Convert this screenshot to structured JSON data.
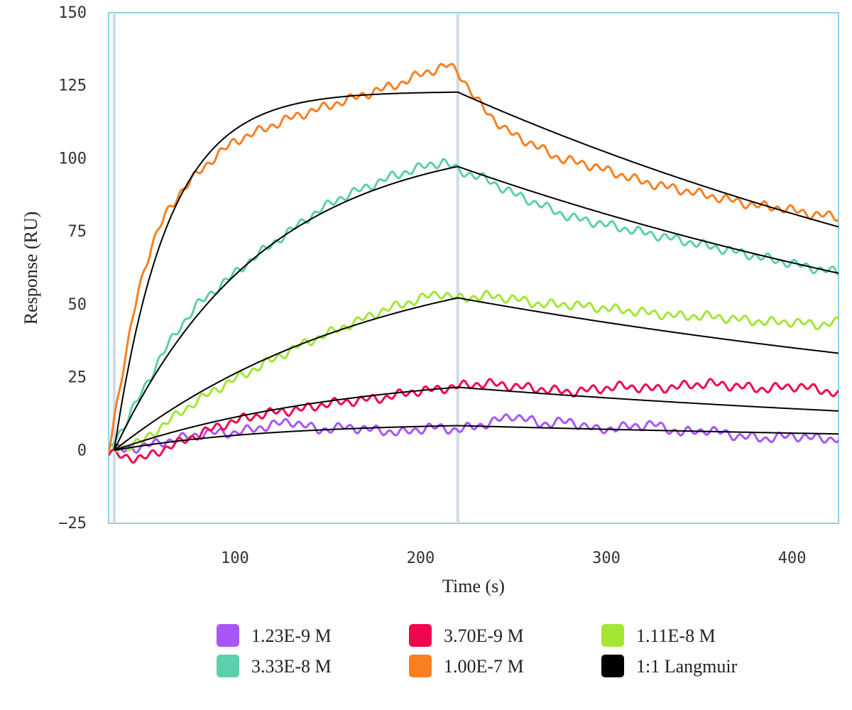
{
  "chart_data": {
    "type": "line",
    "xlabel": "Time (s)",
    "ylabel": "Response (RU)",
    "xlim": [
      32,
      425
    ],
    "ylim": [
      -25,
      150
    ],
    "x_ticks": [
      100,
      200,
      300,
      400
    ],
    "y_ticks": [
      150,
      125,
      100,
      75,
      50,
      25,
      0,
      -25
    ],
    "vertical_markers": [
      35,
      220
    ],
    "legend_position": "bottom",
    "series": [
      {
        "name": "1.23E-9 M",
        "color": "#a855f7",
        "x": [
          32,
          40,
          55,
          70,
          85,
          100,
          115,
          130,
          145,
          160,
          175,
          190,
          205,
          220,
          235,
          250,
          265,
          280,
          295,
          310,
          325,
          340,
          355,
          370,
          385,
          400,
          415,
          425
        ],
        "y": [
          1,
          0,
          2,
          4,
          6,
          6,
          8,
          10,
          7,
          8,
          7,
          6,
          8,
          7,
          9,
          12,
          9,
          10,
          7,
          8,
          9,
          6,
          7,
          5,
          4,
          5,
          4,
          4
        ]
      },
      {
        "name": "3.70E-9 M",
        "color": "#f0064e",
        "x": [
          32,
          40,
          50,
          60,
          75,
          90,
          105,
          120,
          135,
          150,
          165,
          180,
          195,
          210,
          220,
          235,
          250,
          265,
          280,
          295,
          310,
          325,
          340,
          355,
          370,
          385,
          400,
          415,
          425
        ],
        "y": [
          -1,
          -2,
          -3,
          0,
          4,
          8,
          11,
          13,
          14,
          16,
          17,
          18,
          20,
          21,
          22,
          23,
          22,
          21,
          20,
          21,
          22,
          21,
          22,
          23,
          22,
          21,
          22,
          21,
          19
        ]
      },
      {
        "name": "1.11E-8 M",
        "color": "#a3e635",
        "x": [
          32,
          40,
          50,
          60,
          75,
          90,
          105,
          120,
          135,
          150,
          165,
          180,
          195,
          210,
          220,
          235,
          250,
          265,
          280,
          295,
          310,
          325,
          340,
          355,
          370,
          385,
          400,
          415,
          425
        ],
        "y": [
          0,
          1,
          3,
          8,
          15,
          21,
          26,
          31,
          36,
          40,
          44,
          48,
          51,
          54,
          52,
          53,
          52,
          50,
          50,
          49,
          48,
          47,
          46,
          46,
          45,
          44,
          44,
          43,
          44
        ]
      },
      {
        "name": "3.33E-8 M",
        "color": "#5ccfac",
        "x": [
          32,
          40,
          50,
          60,
          70,
          80,
          95,
          110,
          125,
          140,
          155,
          170,
          185,
          200,
          212,
          220,
          235,
          250,
          265,
          280,
          295,
          310,
          325,
          340,
          355,
          370,
          385,
          400,
          415,
          425
        ],
        "y": [
          1,
          8,
          20,
          32,
          42,
          50,
          58,
          66,
          73,
          80,
          86,
          90,
          94,
          97,
          99,
          96,
          93,
          88,
          84,
          80,
          78,
          76,
          74,
          72,
          70,
          68,
          66,
          64,
          62,
          61
        ]
      },
      {
        "name": "1.00E-7 M",
        "color": "#f97f20",
        "x": [
          32,
          36,
          42,
          48,
          55,
          62,
          70,
          80,
          90,
          100,
          115,
          130,
          145,
          160,
          175,
          190,
          200,
          210,
          215,
          220,
          230,
          245,
          260,
          275,
          290,
          305,
          320,
          335,
          350,
          365,
          380,
          395,
          410,
          425
        ],
        "y": [
          0,
          15,
          35,
          55,
          70,
          80,
          88,
          95,
          101,
          106,
          110,
          114,
          117,
          120,
          123,
          126,
          129,
          131,
          132,
          130,
          120,
          110,
          105,
          100,
          98,
          95,
          92,
          90,
          88,
          86,
          84,
          83,
          81,
          80
        ]
      },
      {
        "name": "1:1 Langmuir",
        "color": "#000000",
        "fit": true
      }
    ]
  },
  "legend": [
    {
      "label": "1.23E-9 M",
      "color": "#a855f7"
    },
    {
      "label": "3.70E-9 M",
      "color": "#f0064e"
    },
    {
      "label": "1.11E-8 M",
      "color": "#a3e635"
    },
    {
      "label": "3.33E-8 M",
      "color": "#5ccfac"
    },
    {
      "label": "1.00E-7 M",
      "color": "#f97f20"
    },
    {
      "label": "1:1 Langmuir",
      "color": "#000000"
    }
  ]
}
